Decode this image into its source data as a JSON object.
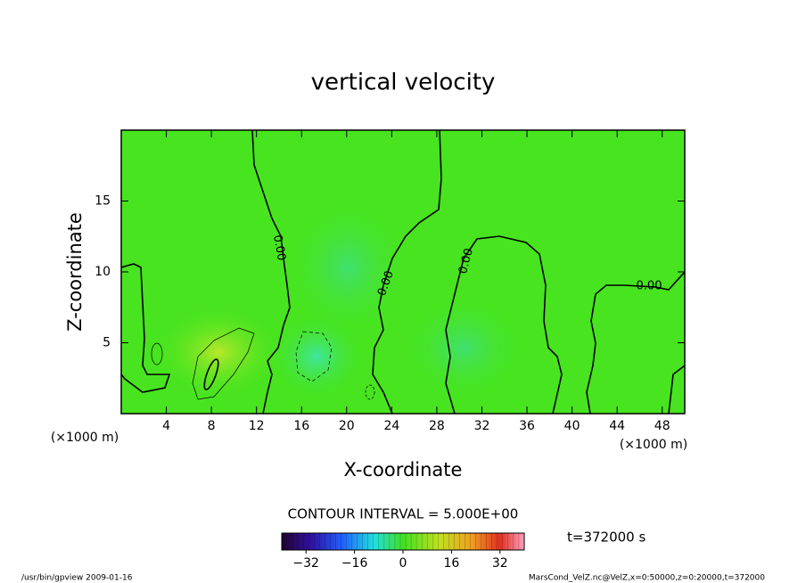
{
  "chart_data": {
    "type": "contour",
    "title": "vertical velocity",
    "xlabel": "X-coordinate",
    "ylabel": "Z-coordinate",
    "x_unit": "(×1000 m)",
    "y_unit": "(×1000 m)",
    "xlim": [
      0,
      50
    ],
    "xticks": [
      4,
      8,
      12,
      16,
      20,
      24,
      28,
      32,
      36,
      40,
      44,
      48
    ],
    "ylim": [
      0,
      20
    ],
    "yticks": [
      5,
      10,
      15
    ],
    "contour_labels": [
      "0.00",
      "0.00",
      "0.00",
      "0.00"
    ],
    "contour_interval": "CONTOUR INTERVAL = 5.000E+00",
    "time_label": "t=372000 s",
    "colorbar": {
      "lim": [
        -40,
        40
      ],
      "ticks": [
        {
          "value": -32,
          "label": "−32"
        },
        {
          "value": -16,
          "label": "−16"
        },
        0,
        16,
        32
      ]
    },
    "footer_left": "/usr/bin/gpview   2009-01-16",
    "footer_right": "MarsCond_VelZ.nc@VelZ,x=0:50000,z=0:20000,t=372000"
  }
}
